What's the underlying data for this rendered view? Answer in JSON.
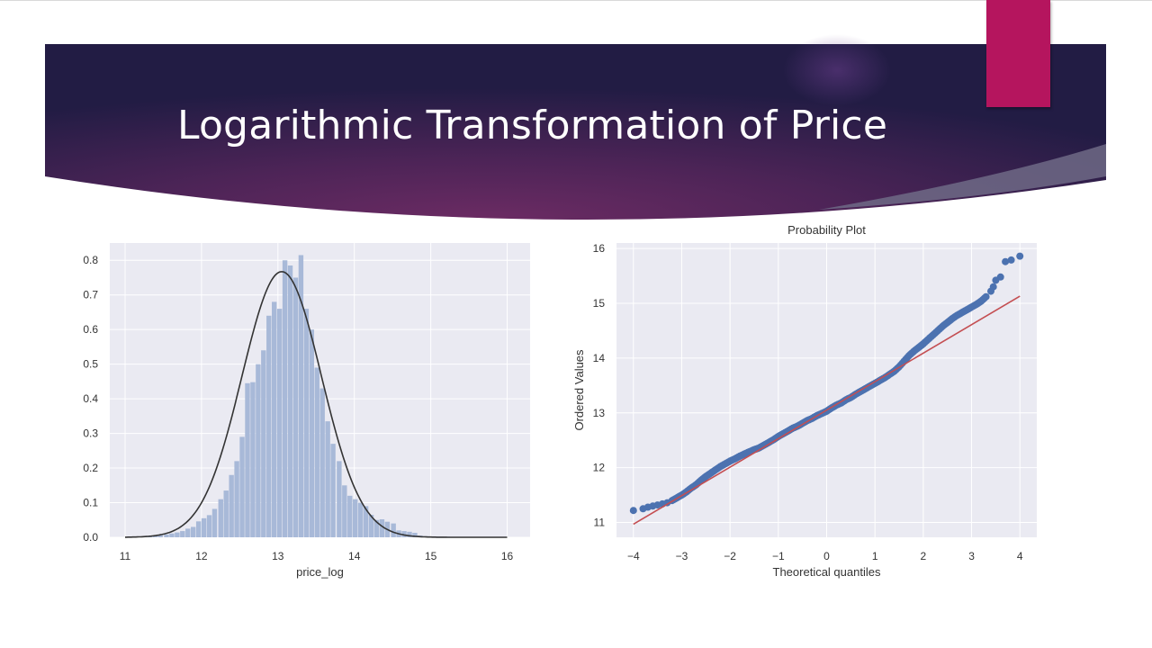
{
  "slide": {
    "title": "Logarithmic Transformation of Price",
    "colors": {
      "banner_dark": "#2a1f48",
      "banner_mid": "#6b2b63",
      "accent": "#b5155e"
    }
  },
  "chart_data": [
    {
      "type": "bar",
      "subtype": "histogram-with-density",
      "title": "",
      "xlabel": "price_log",
      "ylabel": "",
      "xlim": [
        10.8,
        16.3
      ],
      "ylim": [
        0,
        0.85
      ],
      "xticks": [
        11,
        12,
        13,
        14,
        15,
        16
      ],
      "yticks": [
        0.0,
        0.1,
        0.2,
        0.3,
        0.4,
        0.5,
        0.6,
        0.7,
        0.8
      ],
      "bin_width": 0.0706,
      "bins": [
        [
          11.22,
          0.003
        ],
        [
          11.29,
          0.003
        ],
        [
          11.36,
          0.004
        ],
        [
          11.43,
          0.006
        ],
        [
          11.51,
          0.008
        ],
        [
          11.58,
          0.011
        ],
        [
          11.65,
          0.014
        ],
        [
          11.72,
          0.018
        ],
        [
          11.79,
          0.025
        ],
        [
          11.86,
          0.03
        ],
        [
          11.93,
          0.046
        ],
        [
          12.0,
          0.055
        ],
        [
          12.07,
          0.064
        ],
        [
          12.14,
          0.082
        ],
        [
          12.22,
          0.11
        ],
        [
          12.29,
          0.135
        ],
        [
          12.36,
          0.18
        ],
        [
          12.43,
          0.22
        ],
        [
          12.5,
          0.29
        ],
        [
          12.57,
          0.445
        ],
        [
          12.64,
          0.448
        ],
        [
          12.71,
          0.5
        ],
        [
          12.78,
          0.54
        ],
        [
          12.85,
          0.64
        ],
        [
          12.92,
          0.68
        ],
        [
          12.99,
          0.66
        ],
        [
          13.06,
          0.8
        ],
        [
          13.13,
          0.785
        ],
        [
          13.2,
          0.75
        ],
        [
          13.27,
          0.815
        ],
        [
          13.34,
          0.66
        ],
        [
          13.41,
          0.6
        ],
        [
          13.48,
          0.49
        ],
        [
          13.55,
          0.43
        ],
        [
          13.62,
          0.335
        ],
        [
          13.69,
          0.27
        ],
        [
          13.77,
          0.22
        ],
        [
          13.84,
          0.15
        ],
        [
          13.91,
          0.12
        ],
        [
          13.98,
          0.11
        ],
        [
          14.05,
          0.1
        ],
        [
          14.12,
          0.09
        ],
        [
          14.19,
          0.065
        ],
        [
          14.26,
          0.05
        ],
        [
          14.33,
          0.052
        ],
        [
          14.4,
          0.045
        ],
        [
          14.48,
          0.04
        ],
        [
          14.55,
          0.02
        ],
        [
          14.62,
          0.018
        ],
        [
          14.69,
          0.016
        ],
        [
          14.76,
          0.013
        ],
        [
          14.83,
          0.005
        ],
        [
          14.9,
          0.003
        ],
        [
          14.97,
          0.002
        ],
        [
          15.04,
          0.002
        ],
        [
          15.11,
          0.002
        ],
        [
          15.19,
          0.002
        ],
        [
          15.26,
          0.001
        ]
      ],
      "density_curve": {
        "type": "normal",
        "mean": 13.05,
        "sd": 0.52,
        "xrange": [
          11.0,
          16.0
        ]
      }
    },
    {
      "type": "scatter",
      "subtype": "probability-plot",
      "title": "Probability Plot",
      "xlabel": "Theoretical quantiles",
      "ylabel": "Ordered Values",
      "xlim": [
        -4.35,
        4.35
      ],
      "ylim": [
        10.73,
        16.1
      ],
      "xticks": [
        -4,
        -3,
        -2,
        -1,
        0,
        1,
        2,
        3,
        4
      ],
      "yticks": [
        11,
        12,
        13,
        14,
        15,
        16
      ],
      "fit_line": {
        "slope": 0.52,
        "intercept": 13.05,
        "xrange": [
          -4.0,
          4.0
        ]
      },
      "points": [
        [
          -4.0,
          11.22
        ],
        [
          -3.8,
          11.25
        ],
        [
          -3.7,
          11.28
        ],
        [
          -3.6,
          11.3
        ],
        [
          -3.5,
          11.32
        ],
        [
          -3.4,
          11.34
        ],
        [
          -3.3,
          11.36
        ],
        [
          -3.2,
          11.4
        ],
        [
          -3.1,
          11.45
        ],
        [
          -3.0,
          11.5
        ],
        [
          -2.9,
          11.56
        ],
        [
          -2.8,
          11.63
        ],
        [
          -2.7,
          11.69
        ],
        [
          -2.6,
          11.77
        ],
        [
          -2.5,
          11.84
        ],
        [
          -2.4,
          11.9
        ],
        [
          -2.3,
          11.96
        ],
        [
          -2.2,
          12.02
        ],
        [
          -2.1,
          12.07
        ],
        [
          -2.0,
          12.12
        ],
        [
          -1.9,
          12.16
        ],
        [
          -1.8,
          12.21
        ],
        [
          -1.7,
          12.25
        ],
        [
          -1.6,
          12.29
        ],
        [
          -1.5,
          12.33
        ],
        [
          -1.4,
          12.36
        ],
        [
          -1.3,
          12.41
        ],
        [
          -1.2,
          12.46
        ],
        [
          -1.1,
          12.51
        ],
        [
          -1.0,
          12.57
        ],
        [
          -0.9,
          12.62
        ],
        [
          -0.8,
          12.67
        ],
        [
          -0.7,
          12.72
        ],
        [
          -0.6,
          12.76
        ],
        [
          -0.5,
          12.81
        ],
        [
          -0.4,
          12.86
        ],
        [
          -0.3,
          12.9
        ],
        [
          -0.2,
          12.95
        ],
        [
          -0.1,
          12.99
        ],
        [
          0.0,
          13.03
        ],
        [
          0.1,
          13.09
        ],
        [
          0.2,
          13.14
        ],
        [
          0.3,
          13.18
        ],
        [
          0.4,
          13.24
        ],
        [
          0.5,
          13.28
        ],
        [
          0.6,
          13.34
        ],
        [
          0.7,
          13.39
        ],
        [
          0.8,
          13.44
        ],
        [
          0.9,
          13.49
        ],
        [
          1.0,
          13.54
        ],
        [
          1.1,
          13.59
        ],
        [
          1.2,
          13.64
        ],
        [
          1.3,
          13.7
        ],
        [
          1.4,
          13.76
        ],
        [
          1.5,
          13.84
        ],
        [
          1.6,
          13.94
        ],
        [
          1.7,
          14.04
        ],
        [
          1.8,
          14.12
        ],
        [
          1.9,
          14.19
        ],
        [
          2.0,
          14.26
        ],
        [
          2.1,
          14.34
        ],
        [
          2.2,
          14.42
        ],
        [
          2.3,
          14.5
        ],
        [
          2.4,
          14.58
        ],
        [
          2.5,
          14.65
        ],
        [
          2.6,
          14.72
        ],
        [
          2.7,
          14.78
        ],
        [
          2.8,
          14.83
        ],
        [
          2.9,
          14.88
        ],
        [
          3.0,
          14.93
        ],
        [
          3.1,
          14.98
        ],
        [
          3.2,
          15.04
        ],
        [
          3.3,
          15.12
        ],
        [
          3.4,
          15.22
        ],
        [
          3.45,
          15.3
        ],
        [
          3.5,
          15.42
        ],
        [
          3.6,
          15.48
        ],
        [
          3.7,
          15.76
        ],
        [
          3.82,
          15.79
        ],
        [
          4.0,
          15.86
        ]
      ]
    }
  ]
}
